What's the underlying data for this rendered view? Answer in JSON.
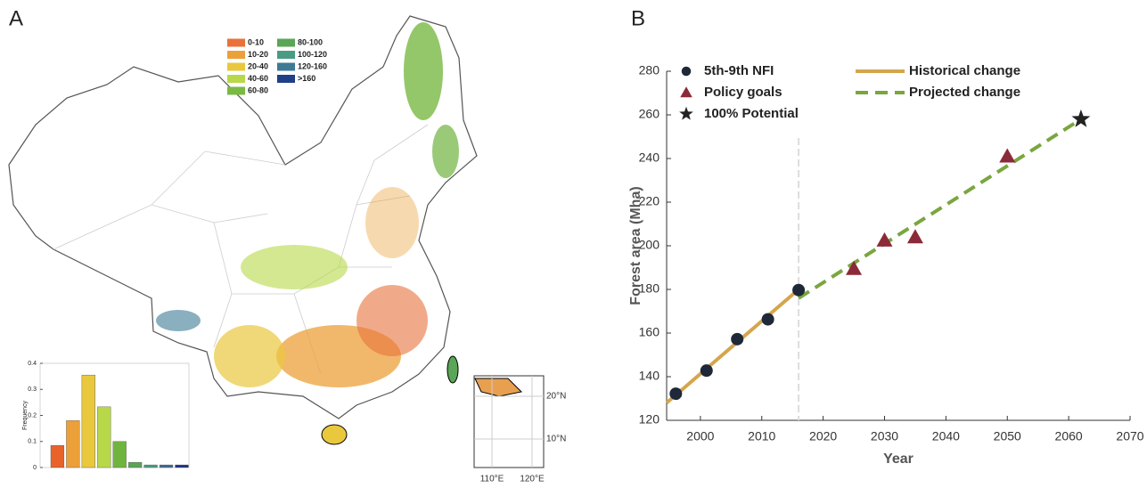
{
  "panel_labels": [
    "A",
    "B"
  ],
  "map": {
    "legend": [
      {
        "label": "0-10",
        "color": "#e8723a"
      },
      {
        "label": "10-20",
        "color": "#eca03a"
      },
      {
        "label": "20-40",
        "color": "#e9c83e"
      },
      {
        "label": "40-60",
        "color": "#b8d84a"
      },
      {
        "label": "60-80",
        "color": "#79b944"
      },
      {
        "label": "80-100",
        "color": "#5aa557"
      },
      {
        "label": "100-120",
        "color": "#4a9b84"
      },
      {
        "label": "120-160",
        "color": "#3c7a95"
      },
      {
        "label": ">160",
        "color": "#1f3f86"
      }
    ],
    "inset": {
      "xticks": [
        "110°E",
        "120°E"
      ],
      "yticks": [
        "20°N",
        "10°N"
      ]
    }
  },
  "chart_data": [
    {
      "type": "bar",
      "ylabel": "Frequency",
      "categories": [
        null,
        null,
        null,
        null,
        null,
        null,
        null,
        null,
        null
      ],
      "values": [
        0.085,
        0.18,
        0.355,
        0.233,
        0.1,
        0.02,
        0.01,
        0.01,
        0.01
      ],
      "colors": [
        "#e8632a",
        "#eca03a",
        "#e9c83e",
        "#b8d84a",
        "#6fb43f",
        "#5aa557",
        "#4a9b84",
        "#3c6a95",
        "#1f2f86"
      ],
      "ylim": [
        0,
        0.4
      ],
      "yticks": [
        0,
        0.1,
        0.2,
        0.3,
        0.4
      ]
    },
    {
      "type": "line",
      "xlabel": "Year",
      "ylabel": "Forest area (Mha)",
      "xlim": [
        1994.5,
        2070
      ],
      "xticks": [
        2000,
        2010,
        2020,
        2030,
        2040,
        2050,
        2060,
        2070
      ],
      "ylim": [
        120,
        280
      ],
      "yticks": [
        120,
        140,
        160,
        180,
        200,
        220,
        240,
        260,
        280
      ],
      "vline": 2016,
      "series": [
        {
          "name": "5th-9th NFI",
          "kind": "scatter",
          "marker": "circle",
          "color": "#1e2838",
          "x": [
            1996,
            2001,
            2006,
            2011,
            2016
          ],
          "values": [
            132.2,
            142.8,
            157.2,
            166.3,
            179.7
          ]
        },
        {
          "name": "Policy goals",
          "kind": "scatter",
          "marker": "triangle",
          "color": "#8b2a38",
          "x": [
            2025,
            2030,
            2035,
            2050
          ],
          "values": [
            189.5,
            202.5,
            204,
            241
          ]
        },
        {
          "name": "100% Potential",
          "kind": "scatter",
          "marker": "star",
          "color": "#222222",
          "x": [
            2062
          ],
          "values": [
            258
          ]
        },
        {
          "name": "Historical change",
          "kind": "line",
          "dash": false,
          "color": "#d4a64c",
          "x": [
            1994.5,
            2016
          ],
          "values": [
            128,
            180
          ]
        },
        {
          "name": "Projected change",
          "kind": "line",
          "dash": true,
          "color": "#7aa63f",
          "x": [
            2016,
            2062
          ],
          "values": [
            176,
            258
          ]
        }
      ]
    }
  ]
}
